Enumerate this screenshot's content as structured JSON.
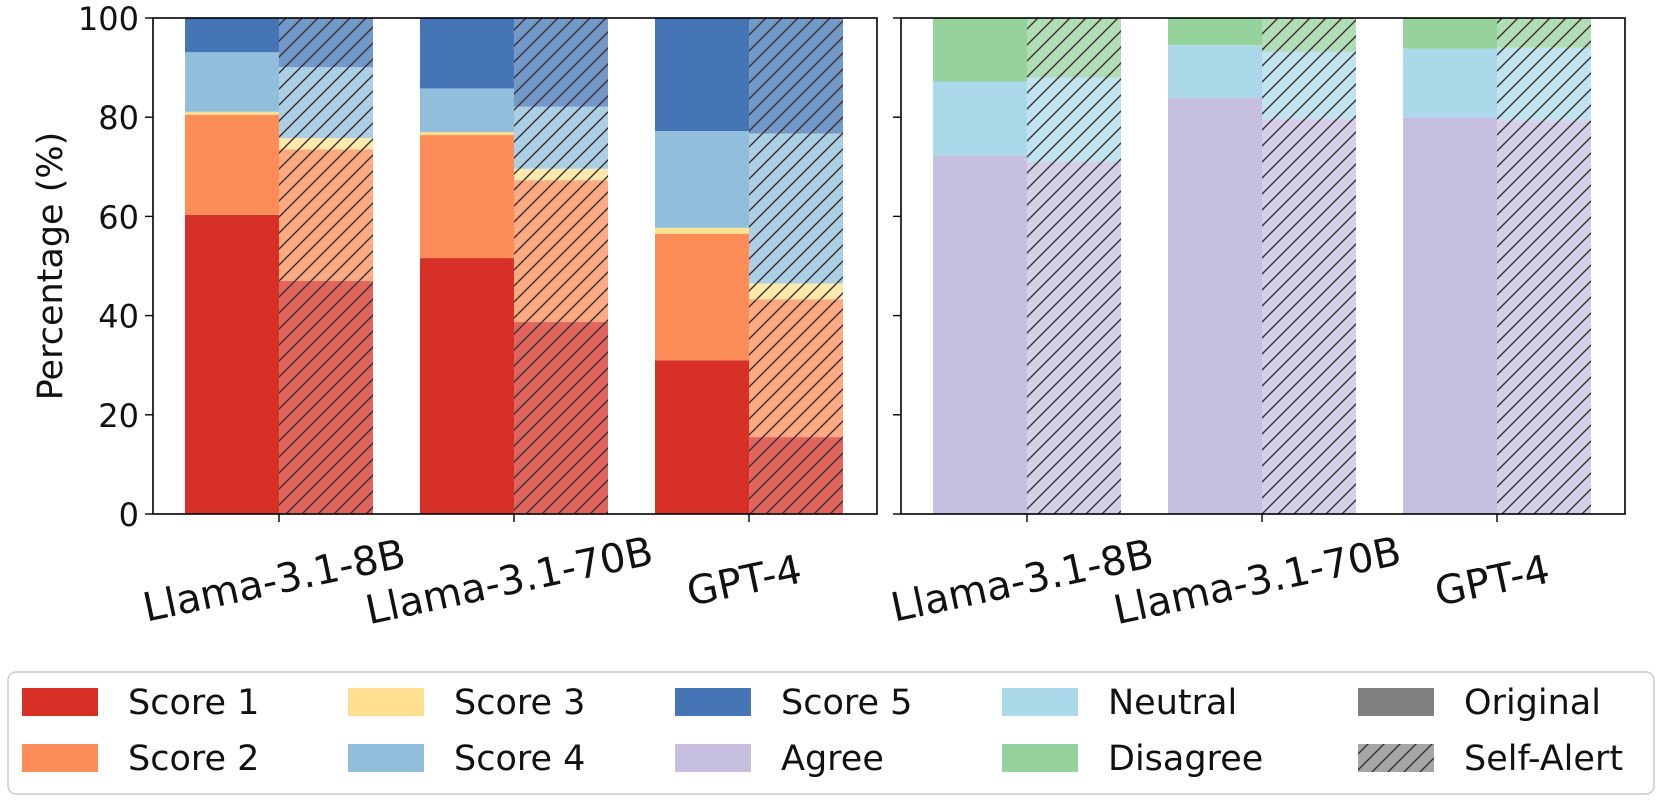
{
  "chart_data": [
    {
      "type": "bar",
      "stacked": true,
      "categories": [
        "Llama-3.1-8B",
        "Llama-3.1-70B",
        "GPT-4"
      ],
      "ylabel": "Percentage (%)",
      "ylim": [
        0,
        100
      ],
      "yticks": [
        "0",
        "20",
        "40",
        "60",
        "80",
        "100"
      ],
      "variants": [
        "Original",
        "Self-Alert"
      ],
      "series": [
        {
          "name": "Score 1",
          "color": "#d73027",
          "original": [
            60.3,
            51.6,
            31.0
          ],
          "self_alert": [
            47.0,
            38.7,
            15.5
          ]
        },
        {
          "name": "Score 2",
          "color": "#fc8d59",
          "original": [
            20.2,
            24.8,
            25.5
          ],
          "self_alert": [
            26.5,
            28.6,
            27.8
          ]
        },
        {
          "name": "Score 3",
          "color": "#fee090",
          "original": [
            0.6,
            0.6,
            1.2
          ],
          "self_alert": [
            2.3,
            2.3,
            3.2
          ]
        },
        {
          "name": "Score 4",
          "color": "#91bfdb",
          "original": [
            12.0,
            8.8,
            19.5
          ],
          "self_alert": [
            14.3,
            12.5,
            30.2
          ]
        },
        {
          "name": "Score 5",
          "color": "#4575b4",
          "original": [
            6.9,
            14.2,
            22.8
          ],
          "self_alert": [
            9.9,
            17.9,
            23.3
          ]
        }
      ]
    },
    {
      "type": "bar",
      "stacked": true,
      "categories": [
        "Llama-3.1-8B",
        "Llama-3.1-70B",
        "GPT-4"
      ],
      "ylim": [
        0,
        100
      ],
      "variants": [
        "Original",
        "Self-Alert"
      ],
      "series": [
        {
          "name": "Agree",
          "color": "#c7bfe0",
          "original": [
            72.3,
            83.9,
            80.0
          ],
          "self_alert": [
            71.0,
            79.7,
            79.4
          ]
        },
        {
          "name": "Neutral",
          "color": "#abd9ea",
          "original": [
            14.9,
            10.6,
            13.8
          ],
          "self_alert": [
            17.0,
            13.5,
            14.6
          ]
        },
        {
          "name": "Disagree",
          "color": "#96d29c",
          "original": [
            12.8,
            5.5,
            6.2
          ],
          "self_alert": [
            12.0,
            6.8,
            6.0
          ]
        }
      ]
    }
  ],
  "legend": {
    "placement": "bottom",
    "items": [
      {
        "label": "Score 1",
        "color": "#d73027",
        "hatch": false
      },
      {
        "label": "Score 3",
        "color": "#fee090",
        "hatch": false
      },
      {
        "label": "Score 5",
        "color": "#4575b4",
        "hatch": false
      },
      {
        "label": "Neutral",
        "color": "#abd9ea",
        "hatch": false
      },
      {
        "label": "Original",
        "color": "#808080",
        "hatch": false
      },
      {
        "label": "Score 2",
        "color": "#fc8d59",
        "hatch": false
      },
      {
        "label": "Score 4",
        "color": "#91bfdb",
        "hatch": false
      },
      {
        "label": "Agree",
        "color": "#c7bfe0",
        "hatch": false
      },
      {
        "label": "Disagree",
        "color": "#96d29c",
        "hatch": false
      },
      {
        "label": "Self-Alert",
        "color": "#a6a6a6",
        "hatch": true
      }
    ]
  }
}
